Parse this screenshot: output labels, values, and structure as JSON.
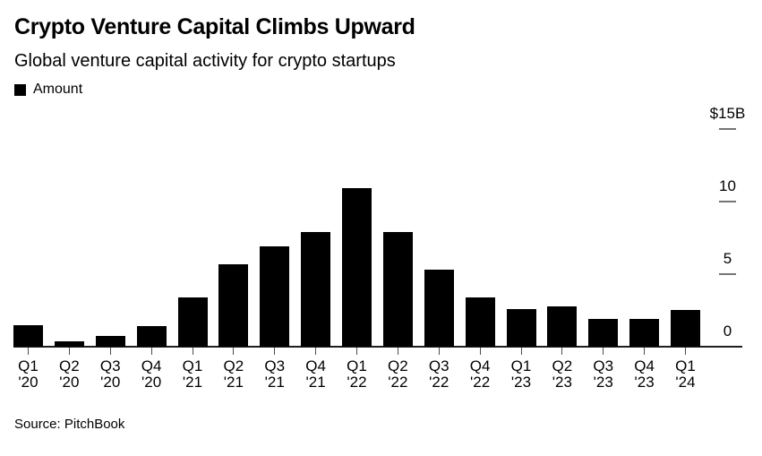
{
  "header": {
    "title": "Crypto Venture Capital Climbs Upward",
    "subtitle": "Global venture capital activity for crypto startups"
  },
  "legend": {
    "items": [
      {
        "label": "Amount",
        "color": "#000000"
      }
    ]
  },
  "footer": {
    "source": "Source: PitchBook"
  },
  "chart_data": {
    "type": "bar",
    "title": "Crypto Venture Capital Climbs Upward",
    "subtitle": "Global venture capital activity for crypto startups",
    "series_name": "Amount",
    "unit": "billion USD",
    "categories": [
      {
        "quarter": "Q1",
        "year": "'20"
      },
      {
        "quarter": "Q2",
        "year": "'20"
      },
      {
        "quarter": "Q3",
        "year": "'20"
      },
      {
        "quarter": "Q4",
        "year": "'20"
      },
      {
        "quarter": "Q1",
        "year": "'21"
      },
      {
        "quarter": "Q2",
        "year": "'21"
      },
      {
        "quarter": "Q3",
        "year": "'21"
      },
      {
        "quarter": "Q4",
        "year": "'21"
      },
      {
        "quarter": "Q1",
        "year": "'22"
      },
      {
        "quarter": "Q2",
        "year": "'22"
      },
      {
        "quarter": "Q3",
        "year": "'22"
      },
      {
        "quarter": "Q4",
        "year": "'22"
      },
      {
        "quarter": "Q1",
        "year": "'23"
      },
      {
        "quarter": "Q2",
        "year": "'23"
      },
      {
        "quarter": "Q3",
        "year": "'23"
      },
      {
        "quarter": "Q4",
        "year": "'23"
      },
      {
        "quarter": "Q1",
        "year": "'24"
      }
    ],
    "values": [
      1.5,
      0.4,
      0.75,
      1.4,
      3.4,
      5.7,
      6.9,
      7.9,
      10.9,
      7.9,
      5.3,
      3.4,
      2.6,
      2.8,
      1.9,
      1.9,
      2.5
    ],
    "ylim": [
      0,
      15
    ],
    "yticks": [
      {
        "label": "$15B",
        "value": 15,
        "tick": true
      },
      {
        "label": "10",
        "value": 10,
        "tick": true
      },
      {
        "label": "5",
        "value": 5,
        "tick": true
      },
      {
        "label": "0",
        "value": 0,
        "tick": false
      }
    ],
    "grid": false,
    "legend_position": "top-left",
    "bar_color": "#000000",
    "axis_color": "#1f1f1f",
    "ytick_color": "#757575",
    "xtick_color": "#4d4d4d"
  }
}
